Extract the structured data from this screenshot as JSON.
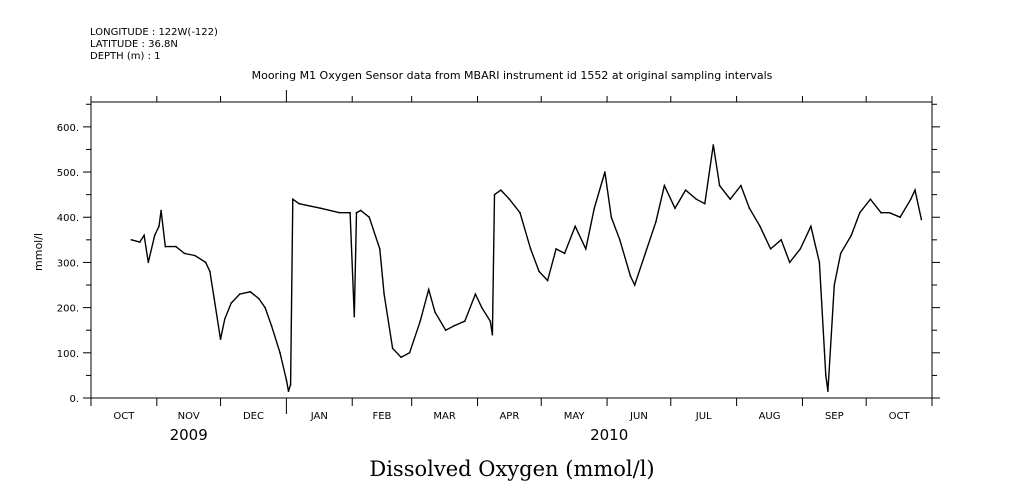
{
  "header": {
    "longitude": "LONGITUDE : 122W(-122)",
    "latitude": "LATITUDE : 36.8N",
    "depth": "DEPTH (m) : 1"
  },
  "chart_data": {
    "type": "line",
    "title": "Mooring M1 Oxygen Sensor data from MBARI instrument id 1552 at original sampling intervals",
    "xlabel": "Dissolved Oxygen (mmol/l)",
    "ylabel": "mmol/l",
    "x_units": "days since 2009-10-01",
    "xlim": [
      0,
      396
    ],
    "ylim": [
      0,
      655
    ],
    "yticks": [
      0,
      100,
      200,
      300,
      400,
      500,
      600
    ],
    "ytick_labels": [
      "0.",
      "100.",
      "200.",
      "300.",
      "400.",
      "500.",
      "600."
    ],
    "month_ticks": [
      0,
      31,
      61,
      92,
      123,
      151,
      182,
      212,
      243,
      273,
      304,
      335,
      365,
      396
    ],
    "month_labels": [
      "OCT",
      "NOV",
      "DEC",
      "JAN",
      "FEB",
      "MAR",
      "APR",
      "MAY",
      "JUN",
      "JUL",
      "AUG",
      "SEP",
      "OCT"
    ],
    "year_labels": [
      {
        "text": "2009",
        "day": 46
      },
      {
        "text": "2010",
        "day": 244
      }
    ],
    "grid": false,
    "series": [
      {
        "name": "Dissolved Oxygen",
        "x": [
          19,
          23,
          25,
          27,
          30,
          32,
          33,
          35,
          40,
          44,
          49,
          54,
          56,
          58,
          61,
          63,
          66,
          70,
          75,
          79,
          82,
          85,
          89,
          92,
          93,
          94,
          95,
          98,
          108,
          117,
          122,
          124,
          125,
          127,
          131,
          136,
          138,
          142,
          146,
          150,
          155,
          159,
          162,
          167,
          171,
          176,
          181,
          184,
          188,
          189,
          190,
          193,
          197,
          202,
          207,
          211,
          215,
          219,
          223,
          228,
          233,
          237,
          242,
          245,
          249,
          254,
          256,
          261,
          266,
          270,
          275,
          280,
          285,
          289,
          293,
          296,
          301,
          306,
          310,
          315,
          320,
          325,
          329,
          334,
          339,
          343,
          346,
          347,
          350,
          353,
          358,
          362,
          367,
          372,
          376,
          381,
          386,
          388,
          391
        ],
        "y": [
          350,
          345,
          360,
          300,
          360,
          380,
          415,
          335,
          335,
          320,
          315,
          300,
          280,
          220,
          130,
          175,
          210,
          230,
          235,
          220,
          200,
          160,
          100,
          40,
          15,
          30,
          440,
          430,
          420,
          410,
          410,
          180,
          410,
          415,
          400,
          330,
          230,
          110,
          90,
          100,
          170,
          240,
          190,
          150,
          160,
          170,
          230,
          200,
          170,
          140,
          450,
          460,
          440,
          410,
          330,
          280,
          260,
          330,
          320,
          380,
          330,
          420,
          500,
          400,
          350,
          270,
          250,
          320,
          390,
          470,
          420,
          460,
          440,
          430,
          560,
          470,
          440,
          470,
          420,
          380,
          330,
          350,
          300,
          330,
          380,
          300,
          50,
          15,
          250,
          320,
          360,
          410,
          440,
          410,
          410,
          400,
          440,
          460,
          395
        ]
      }
    ]
  }
}
